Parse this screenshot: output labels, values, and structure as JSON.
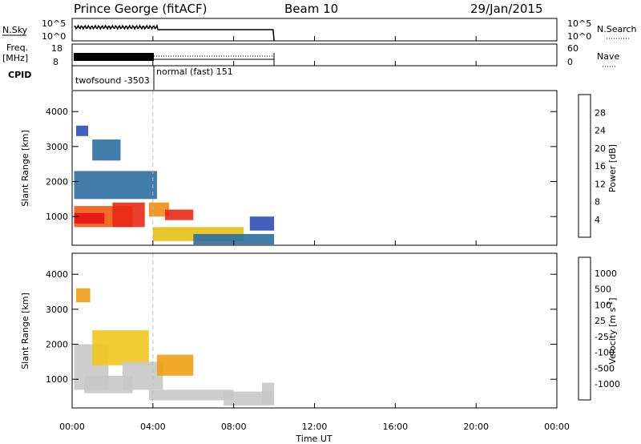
{
  "header": {
    "station": "Prince George (fitACF)",
    "beam": "Beam 10",
    "date": "29/Jan/2015"
  },
  "top_panels": {
    "nsky_label": "N.Sky",
    "nsky_ticks": [
      "10^5",
      "10^0"
    ],
    "nsky_right_ticks": [
      "10^5",
      "10^0"
    ],
    "nsearch_label": "N.Search",
    "freq_label_1": "Freq.",
    "freq_label_2": "[MHz]",
    "freq_ticks": [
      "18",
      "8"
    ],
    "nave_ticks": [
      "60",
      "0"
    ],
    "nave_label": "Nave",
    "cpid_label": "CPID",
    "cpid_1": "twofsound -3503",
    "cpid_2": "normal (fast) 151"
  },
  "colors": {
    "power_scale": [
      "#1e1ee6",
      "#2d4fb4",
      "#2e6e9e",
      "#3a8c5a",
      "#7bbd3a",
      "#e8c016",
      "#f08c14",
      "#f05a14",
      "#e82a14",
      "#e61414"
    ],
    "velocity_scale": [
      "#e61414",
      "#f03c14",
      "#f07814",
      "#f0a014",
      "#f0c81e",
      "#c8c8c8",
      "#c8c8c8",
      "#8cd23c",
      "#3c9c50",
      "#2d64b4",
      "#1e32c8"
    ],
    "dashed_line": "#bbbbbb"
  },
  "chart_data": [
    {
      "type": "heatmap",
      "title": "",
      "xlabel": "Time UT",
      "ylabel": "Slant Range [km]",
      "x_ticks": [
        "00:00",
        "04:00",
        "08:00",
        "12:00",
        "16:00",
        "20:00",
        "00:00"
      ],
      "y_ticks": [
        "1000",
        "2000",
        "3000",
        "4000"
      ],
      "xlim_hours": [
        0,
        24
      ],
      "ylim_km": [
        180,
        4600
      ],
      "colorbar": {
        "label": "Power [dB]",
        "ticks": [
          "4",
          "8",
          "12",
          "16",
          "20",
          "24",
          "28"
        ],
        "range": [
          0,
          30
        ]
      },
      "regions": [
        {
          "t0": 0.1,
          "t1": 4.2,
          "r0": 1500,
          "r1": 2300,
          "value": 6
        },
        {
          "t0": 0.1,
          "t1": 3.0,
          "r0": 700,
          "r1": 1300,
          "value": 22
        },
        {
          "t0": 0.1,
          "t1": 1.6,
          "r0": 800,
          "r1": 1100,
          "value": 27
        },
        {
          "t0": 2.0,
          "t1": 3.6,
          "r0": 700,
          "r1": 1400,
          "value": 26
        },
        {
          "t0": 3.8,
          "t1": 4.8,
          "r0": 1000,
          "r1": 1400,
          "value": 18
        },
        {
          "t0": 4.6,
          "t1": 6.0,
          "r0": 900,
          "r1": 1200,
          "value": 24
        },
        {
          "t0": 4.0,
          "t1": 8.5,
          "r0": 300,
          "r1": 700,
          "value": 16
        },
        {
          "t0": 6.0,
          "t1": 10.0,
          "r0": 200,
          "r1": 500,
          "value": 6
        },
        {
          "t0": 0.2,
          "t1": 0.8,
          "r0": 3300,
          "r1": 3600,
          "value": 4
        },
        {
          "t0": 1.0,
          "t1": 2.4,
          "r0": 2600,
          "r1": 3200,
          "value": 6
        },
        {
          "t0": 8.8,
          "t1": 10.0,
          "r0": 600,
          "r1": 1000,
          "value": 4
        }
      ]
    },
    {
      "type": "heatmap",
      "title": "",
      "xlabel": "Time UT",
      "ylabel": "Slant Range [km]",
      "x_ticks": [
        "00:00",
        "04:00",
        "08:00",
        "12:00",
        "16:00",
        "20:00",
        "00:00"
      ],
      "y_ticks": [
        "1000",
        "2000",
        "3000",
        "4000"
      ],
      "xlim_hours": [
        0,
        24
      ],
      "ylim_km": [
        180,
        4600
      ],
      "colorbar": {
        "label": "Velocity [m s^-1]",
        "ticks": [
          "1000",
          "500",
          "100",
          "25",
          "-25",
          "-100",
          "-500",
          "-1000"
        ],
        "range": [
          -1250,
          1250
        ]
      },
      "regions": [
        {
          "t0": 0.1,
          "t1": 1.8,
          "r0": 700,
          "r1": 2000,
          "value": 0
        },
        {
          "t0": 1.0,
          "t1": 3.8,
          "r0": 1400,
          "r1": 2400,
          "value": -300
        },
        {
          "t0": 0.6,
          "t1": 3.0,
          "r0": 600,
          "r1": 1100,
          "value": -100
        },
        {
          "t0": 2.5,
          "t1": 4.5,
          "r0": 700,
          "r1": 1500,
          "value": -80
        },
        {
          "t0": 4.2,
          "t1": 6.0,
          "r0": 1100,
          "r1": 1700,
          "value": -500
        },
        {
          "t0": 3.8,
          "t1": 8.0,
          "r0": 400,
          "r1": 700,
          "value": -100
        },
        {
          "t0": 7.5,
          "t1": 10.0,
          "r0": 250,
          "r1": 650,
          "value": 0
        },
        {
          "t0": 0.2,
          "t1": 0.9,
          "r0": 3200,
          "r1": 3600,
          "value": -400
        },
        {
          "t0": 9.4,
          "t1": 10.0,
          "r0": 300,
          "r1": 900,
          "value": 150
        }
      ]
    }
  ]
}
